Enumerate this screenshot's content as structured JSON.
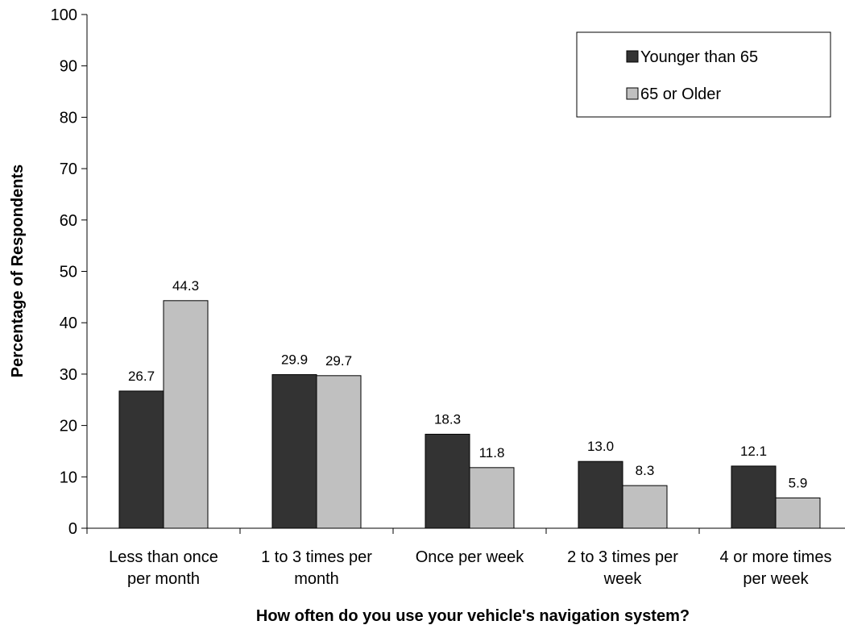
{
  "chart_data": {
    "type": "bar",
    "title": "",
    "xlabel": "How often do you use your vehicle's navigation system?",
    "ylabel": "Percentage of Respondents",
    "ylim": [
      0,
      100
    ],
    "yticks": [
      "0",
      "10",
      "20",
      "30",
      "40",
      "50",
      "60",
      "70",
      "80",
      "90",
      "100"
    ],
    "categories": [
      [
        "Less than once",
        "per month"
      ],
      [
        "1 to 3 times per",
        "month"
      ],
      [
        "Once per week"
      ],
      [
        "2 to 3 times per",
        "week"
      ],
      [
        "4 or more times",
        "per week"
      ]
    ],
    "series": [
      {
        "name": "Younger than 65",
        "color": "#333333",
        "values": [
          26.7,
          29.9,
          18.3,
          13.0,
          12.1
        ],
        "labels": [
          "26.7",
          "29.9",
          "18.3",
          "13.0",
          "12.1"
        ]
      },
      {
        "name": "65 or Older",
        "color": "#c0c0c0",
        "values": [
          44.3,
          29.7,
          11.8,
          8.3,
          5.9
        ],
        "labels": [
          "44.3",
          "29.7",
          "11.8",
          "8.3",
          "5.9"
        ]
      }
    ],
    "legend_position": "top-right",
    "grid": false
  }
}
